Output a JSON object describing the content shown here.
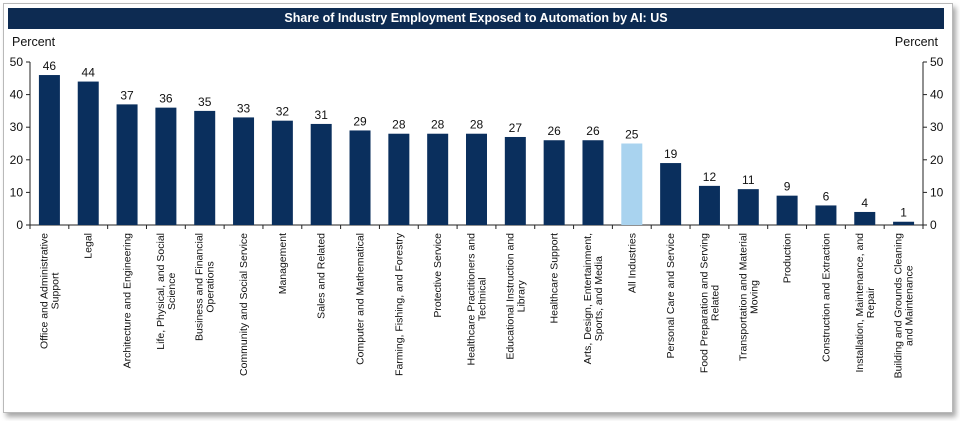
{
  "colors": {
    "bar": "#0a2f5d",
    "highlight": "#a9d3ef",
    "title_bg": "#0d2b52"
  },
  "chart_data": {
    "type": "bar",
    "title": "Share of Industry Employment Exposed to Automation by AI: US",
    "ylabel_left": "Percent",
    "ylabel_right": "Percent",
    "ylim": [
      0,
      50
    ],
    "yticks": [
      0,
      10,
      20,
      30,
      40,
      50
    ],
    "grid": false,
    "highlight_category": "All Industries",
    "categories": [
      "Office and Administrative Support",
      "Legal",
      "Architecture and Engineering",
      "Life, Physical, and Social Science",
      "Business and Financial Operations",
      "Community and Social Service",
      "Management",
      "Sales and Related",
      "Computer and Mathematical",
      "Farming, Fishing, and Forestry",
      "Protective Service",
      "Healthcare Practitioners and Technical",
      "Educational Instruction and Library",
      "Healthcare Support",
      "Arts, Design, Entertainment, Sports, and Media",
      "All Industries",
      "Personal Care and Service",
      "Food Preparation and Serving Related",
      "Transportation and Material Moving",
      "Production",
      "Construction and Extraction",
      "Installation, Maintenance, and Repair",
      "Building and Grounds Cleaning and Maintenance"
    ],
    "category_label_lines": [
      [
        "Office and Administrative",
        "Support"
      ],
      [
        "Legal"
      ],
      [
        "Architecture and Engineering"
      ],
      [
        "Life, Physical, and Social",
        "Science"
      ],
      [
        "Business and Financial",
        "Operations"
      ],
      [
        "Community and Social Service"
      ],
      [
        "Management"
      ],
      [
        "Sales and Related"
      ],
      [
        "Computer and Mathematical"
      ],
      [
        "Farming, Fishing, and Forestry"
      ],
      [
        "Protective Service"
      ],
      [
        "Healthcare Practitioners and",
        "Technical"
      ],
      [
        "Educational Instruction and",
        "Library"
      ],
      [
        "Healthcare Support"
      ],
      [
        "Arts, Design, Entertainment,",
        "Sports, and Media"
      ],
      [
        "All Industries"
      ],
      [
        "Personal Care and Service"
      ],
      [
        "Food Preparation and Serving",
        "Related"
      ],
      [
        "Transportation and Material",
        "Moving"
      ],
      [
        "Production"
      ],
      [
        "Construction and Extraction"
      ],
      [
        "Installation, Maintenance, and",
        "Repair"
      ],
      [
        "Building and Grounds Cleaning",
        "and Maintenance"
      ]
    ],
    "values": [
      46,
      44,
      37,
      36,
      35,
      33,
      32,
      31,
      29,
      28,
      28,
      28,
      27,
      26,
      26,
      25,
      19,
      12,
      11,
      9,
      6,
      4,
      1
    ]
  }
}
